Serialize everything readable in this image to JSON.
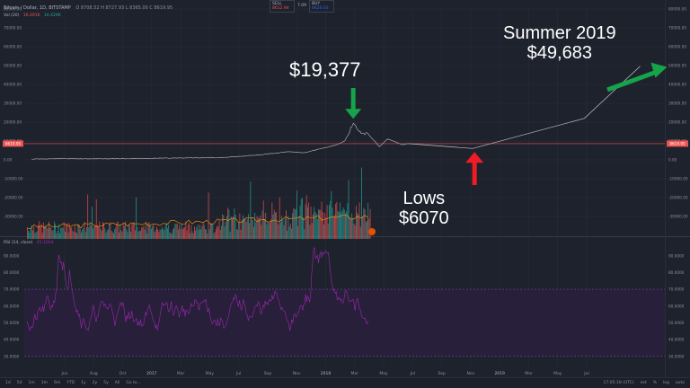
{
  "header": {
    "symbol": "Bitcoin / Dollar, 1D, BITSTAMP",
    "ohlc": "O 8708.52  H 8727.93  L 8365.00  C 8619.95"
  },
  "volume_legend": {
    "label": "Vol (20)",
    "v1": "16.491K",
    "v2": "16.429K"
  },
  "trade": {
    "sell_label": "SELL",
    "sell_price": "8612.94",
    "spread": "7.09",
    "buy_label": "BUY",
    "buy_price": "8620.03"
  },
  "rsi_legend": {
    "label": "RSI (14, close)",
    "value": "45.1004"
  },
  "annotations": {
    "peak": "$19,377",
    "target_line1": "Summer 2019",
    "target_line2": "$49,683",
    "lows_line1": "Lows",
    "lows_line2": "$6070"
  },
  "price_tag": "8619.95",
  "toolbar": {
    "timeframes": [
      "1d",
      "5d",
      "1m",
      "3m",
      "6m",
      "YTD",
      "1y",
      "2y",
      "5y",
      "All",
      "Go to..."
    ],
    "right": [
      "17:05:18 (UTC)",
      "ext",
      "%",
      "log",
      "auto"
    ]
  },
  "colors": {
    "background": "#1e222d",
    "grid": "#2a2e39",
    "price_line": "#a7a9ae",
    "projection": "#c3c5c9",
    "current_price": "#ef5350",
    "volume_up": "#26a69a",
    "volume_down": "#ef5350",
    "volume_ma": "#ff9800",
    "rsi_line": "#9c27b0",
    "rsi_band": "#2a1f3d",
    "arrow_green": "#16a34a",
    "arrow_red": "#ef1c24"
  },
  "chart_data": [
    {
      "type": "line",
      "panel": "price",
      "title": "Bitcoin / Dollar, 1D, BITSTAMP",
      "x_labels": [
        "Jun",
        "Aug",
        "Oct",
        "2017",
        "Mar",
        "May",
        "Jul",
        "Sep",
        "Nov",
        "2018",
        "Mar",
        "May",
        "Jul",
        "Sep",
        "Nov",
        "2019",
        "Mar",
        "May",
        "Jul"
      ],
      "y_ticks": [
        -30000,
        -20000,
        -10000,
        0,
        10000,
        20000,
        30000,
        40000,
        50000,
        60000,
        70000,
        80000
      ],
      "ylim": [
        -40000,
        80000
      ],
      "series": [
        {
          "values_x": [
            "2016-04",
            "2016-06",
            "2016-08",
            "2016-10",
            "2016-12",
            "2017-02",
            "2017-04",
            "2017-06",
            "2017-08",
            "2017-09",
            "2017-10",
            "2017-11",
            "2017-12-01",
            "2017-12-17",
            "2018-01-01",
            "2018-01-15",
            "2018-02-05",
            "2018-02-20",
            "2018-03-05",
            "2018-03-20",
            "2018-04-01"
          ],
          "values_y": [
            430,
            650,
            580,
            620,
            900,
            1050,
            1200,
            2500,
            4300,
            3800,
            5800,
            8000,
            10000,
            19377,
            14000,
            13500,
            7000,
            11000,
            9800,
            8000,
            8620
          ]
        },
        {
          "name": "",
          "values_x": [
            "2018-04-01",
            "2018-08-01",
            "2019-03-01",
            "2019-06-15"
          ],
          "values_y": [
            8620,
            6070,
            22000,
            49683
          ]
        }
      ],
      "current_price": 8619.95,
      "annotations": [
        {
          "text": "$19,377",
          "x": "2017-12-17",
          "y": 19377
        },
        {
          "text": "Summer 2019 $49,683",
          "x": "2019-06-15",
          "y": 49683
        },
        {
          "text": "Lows $6070",
          "x": "2018-08-01",
          "y": 6070
        }
      ]
    },
    {
      "type": "line",
      "panel": "rsi",
      "title": "RSI (14, close)",
      "y_ticks": [
        30,
        40,
        50,
        60,
        70,
        80,
        90
      ],
      "ylim": [
        24,
        100
      ],
      "band": [
        30,
        70
      ],
      "last_value": 45.1004
    }
  ]
}
